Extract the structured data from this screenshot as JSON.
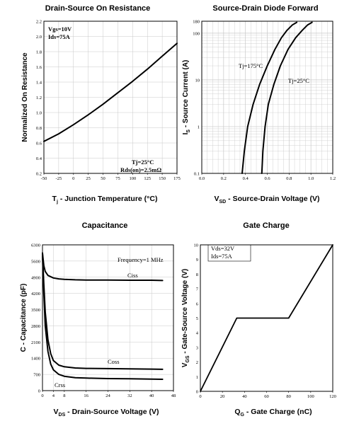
{
  "chart_data": [
    {
      "type": "line",
      "title": "Drain-Source On Resistance",
      "xlabel": "T_j - Junction Temperature (°C)",
      "ylabel": "Normalized On Resistance",
      "xlim": [
        -50,
        175
      ],
      "ylim": [
        0.2,
        2.2
      ],
      "xticks": [
        -50,
        -25,
        0,
        25,
        50,
        75,
        100,
        125,
        150,
        175
      ],
      "yticks": [
        0.2,
        0.4,
        0.6,
        0.8,
        1.0,
        1.2,
        1.4,
        1.6,
        1.8,
        2.0,
        2.2
      ],
      "grid": true,
      "annotations": [
        "Vgs=10V",
        "Ids=75A",
        "Tj=25°C",
        "Rds(on)=2.5mΩ"
      ],
      "series": [
        {
          "x": [
            -50,
            -25,
            0,
            25,
            50,
            75,
            100,
            125,
            150,
            175
          ],
          "y": [
            0.62,
            0.72,
            0.84,
            0.97,
            1.11,
            1.26,
            1.41,
            1.57,
            1.74,
            1.91
          ]
        }
      ]
    },
    {
      "type": "line",
      "title": "Source-Drain Diode Forward",
      "xlabel": "V_SD - Source-Drain Voltage (V)",
      "ylabel": "I_S - Source Current (A)",
      "xlim": [
        0,
        1.2
      ],
      "ylim": [
        0.1,
        180
      ],
      "yscale": "log",
      "xticks": [
        0.0,
        0.2,
        0.4,
        0.6,
        0.8,
        1.0,
        1.2
      ],
      "yticks": [
        0.1,
        1,
        10,
        100,
        180
      ],
      "grid": true,
      "annotations": [
        "Tj=175°C",
        "Tj=25°C"
      ],
      "series": [
        {
          "name": "Tj=175°C",
          "x": [
            0.37,
            0.39,
            0.42,
            0.47,
            0.53,
            0.6,
            0.67,
            0.73,
            0.78,
            0.83,
            0.87
          ],
          "y": [
            0.1,
            0.3,
            1,
            3,
            8,
            20,
            45,
            80,
            115,
            150,
            170
          ]
        },
        {
          "name": "Tj=25°C",
          "x": [
            0.55,
            0.56,
            0.58,
            0.61,
            0.66,
            0.72,
            0.79,
            0.86,
            0.92,
            0.97,
            1.01
          ],
          "y": [
            0.1,
            0.3,
            1,
            3,
            8,
            20,
            45,
            80,
            115,
            150,
            170
          ]
        }
      ]
    },
    {
      "type": "line",
      "title": "Capacitance",
      "xlabel": "V_DS - Drain-Source Voltage (V)",
      "ylabel": "C - Capacitance (pF)",
      "xlim": [
        0,
        48
      ],
      "ylim": [
        0,
        6300
      ],
      "xticks": [
        0,
        4,
        8,
        16,
        24,
        32,
        40,
        48
      ],
      "yticks": [
        0,
        700,
        1400,
        2100,
        2800,
        3500,
        4200,
        4900,
        5600,
        6300
      ],
      "grid": true,
      "annotations": [
        "Frequency=1 MHz",
        "Ciss",
        "Coss",
        "Crss"
      ],
      "series": [
        {
          "name": "Ciss",
          "x": [
            0,
            0.5,
            1,
            2,
            4,
            6,
            8,
            12,
            16,
            24,
            32,
            40,
            44
          ],
          "y": [
            5950,
            5400,
            5150,
            4980,
            4870,
            4830,
            4810,
            4790,
            4780,
            4780,
            4770,
            4770,
            4760
          ]
        },
        {
          "name": "Coss",
          "x": [
            0,
            0.5,
            1,
            2,
            3,
            4,
            6,
            8,
            12,
            16,
            24,
            32,
            40,
            44
          ],
          "y": [
            5900,
            4600,
            3400,
            2200,
            1600,
            1300,
            1100,
            1030,
            980,
            960,
            950,
            940,
            930,
            920
          ]
        },
        {
          "name": "Crss",
          "x": [
            0,
            0.5,
            1,
            2,
            3,
            4,
            6,
            8,
            12,
            16,
            24,
            32,
            40,
            44
          ],
          "y": [
            5800,
            4200,
            2800,
            1700,
            1150,
            900,
            700,
            620,
            560,
            540,
            520,
            510,
            500,
            490
          ]
        }
      ]
    },
    {
      "type": "line",
      "title": "Gate Charge",
      "xlabel": "Q_G - Gate Charge (nC)",
      "ylabel": "V_GS - Gate-Source Voltage (V)",
      "xlim": [
        0,
        120
      ],
      "ylim": [
        0,
        10
      ],
      "xticks": [
        0,
        20,
        40,
        60,
        80,
        100,
        120
      ],
      "yticks": [
        0,
        1,
        2,
        3,
        4,
        5,
        6,
        7,
        8,
        9,
        10
      ],
      "grid": false,
      "annotations": [
        "Vds=32V",
        "Ids=75A"
      ],
      "series": [
        {
          "x": [
            0,
            33,
            80,
            120
          ],
          "y": [
            0,
            5.0,
            5.0,
            10.0
          ]
        }
      ]
    }
  ]
}
